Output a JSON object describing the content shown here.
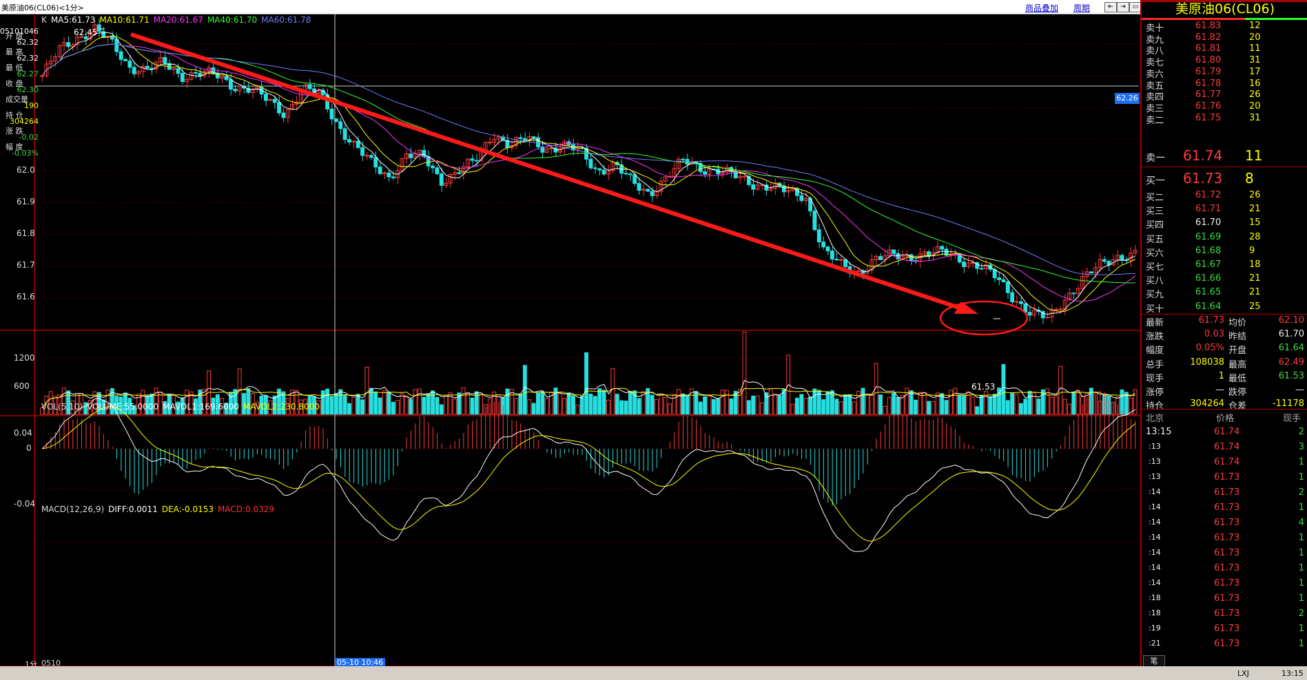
{
  "window": {
    "title": "美原油06(CL06)<1分>",
    "goods_overlay_link": "商品叠加",
    "period_link": "周期"
  },
  "left_panel": {
    "code": "05101046",
    "rows": [
      {
        "label": "开 盘",
        "value": "62.32",
        "color": "#ffffff"
      },
      {
        "label": "最 高",
        "value": "62.32",
        "color": "#ffffff"
      },
      {
        "label": "最 低",
        "value": "62.27",
        "color": "#3ddc3d"
      },
      {
        "label": "收 盘",
        "value": "62.30",
        "color": "#3ddc3d"
      },
      {
        "label": "成交量",
        "value": "190",
        "color": "#ffff00"
      },
      {
        "label": "持 仓",
        "value": "304264",
        "color": "#ffff00"
      },
      {
        "label": "涨 跌",
        "value": "-0.02",
        "color": "#3ddc3d"
      },
      {
        "label": "幅 度",
        "value": "-0.03%",
        "color": "#3ddc3d"
      }
    ]
  },
  "main_chart": {
    "legend": [
      {
        "text": "K",
        "color": "#dddddd"
      },
      {
        "text": "MA5:61.73",
        "color": "#ffffff"
      },
      {
        "text": "MA10:61.71",
        "color": "#ffff00"
      },
      {
        "text": "MA20:61.67",
        "color": "#ff33ff"
      },
      {
        "text": "MA40:61.70",
        "color": "#33ff33"
      },
      {
        "text": "MA60:61.78",
        "color": "#6f7fff"
      }
    ],
    "y_ticks": [
      "62.0",
      "61.9",
      "61.8",
      "61.7",
      "61.6"
    ],
    "high_label": "62.45",
    "low_label": "61.53",
    "price_tag": "62.26"
  },
  "volume_chart": {
    "legend": [
      {
        "text": "VOL(5,10)",
        "color": "#dddddd"
      },
      {
        "text": "VOLUME:55.0000",
        "color": "#ffffff"
      },
      {
        "text": "MAVOL1:169.6000",
        "color": "#ffffff"
      },
      {
        "text": "MAVOL2:230.8000",
        "color": "#ffff00"
      }
    ],
    "y_ticks": [
      "1200",
      "600"
    ]
  },
  "macd_chart": {
    "legend": [
      {
        "text": "MACD(12,26,9)",
        "color": "#dddddd"
      },
      {
        "text": "DIFF:0.0011",
        "color": "#ffffff"
      },
      {
        "text": "DEA:-0.0153",
        "color": "#ffff00"
      },
      {
        "text": "MACD:0.0329",
        "color": "#ff3333"
      }
    ],
    "y_ticks": [
      "0.04",
      "0",
      "-0.04"
    ]
  },
  "x_axis": {
    "period_label": "1分",
    "start_label": "0510",
    "cursor_label": "05-10 10:46"
  },
  "right_panel": {
    "title": "美原油06(CL06)",
    "asks": [
      {
        "name": "卖十",
        "price": "61.83",
        "qty": "12"
      },
      {
        "name": "卖九",
        "price": "61.82",
        "qty": "20"
      },
      {
        "name": "卖八",
        "price": "61.81",
        "qty": "11"
      },
      {
        "name": "卖七",
        "price": "61.80",
        "qty": "31"
      },
      {
        "name": "卖六",
        "price": "61.79",
        "qty": "17"
      },
      {
        "name": "卖五",
        "price": "61.78",
        "qty": "16"
      },
      {
        "name": "卖四",
        "price": "61.77",
        "qty": "26"
      },
      {
        "name": "卖三",
        "price": "61.76",
        "qty": "20"
      },
      {
        "name": "卖二",
        "price": "61.75",
        "qty": "31"
      }
    ],
    "ask1": {
      "name": "卖一",
      "price": "61.74",
      "qty": "11"
    },
    "bid1": {
      "name": "买一",
      "price": "61.73",
      "qty": "8"
    },
    "bids": [
      {
        "name": "买二",
        "price": "61.72",
        "qty": "26",
        "pc": "red"
      },
      {
        "name": "买三",
        "price": "61.71",
        "qty": "21",
        "pc": "red"
      },
      {
        "name": "买四",
        "price": "61.70",
        "qty": "15",
        "pc": "white"
      },
      {
        "name": "买五",
        "price": "61.69",
        "qty": "28",
        "pc": "green"
      },
      {
        "name": "买六",
        "price": "61.68",
        "qty": "9",
        "pc": "green"
      },
      {
        "name": "买七",
        "price": "61.67",
        "qty": "18",
        "pc": "green"
      },
      {
        "name": "买八",
        "price": "61.66",
        "qty": "21",
        "pc": "green"
      },
      {
        "name": "买九",
        "price": "61.65",
        "qty": "21",
        "pc": "green"
      },
      {
        "name": "买十",
        "price": "61.64",
        "qty": "25",
        "pc": "green"
      }
    ],
    "stats": [
      {
        "l1": "最新",
        "v1": "61.73",
        "c1": "red",
        "l2": "均价",
        "v2": "62.10",
        "c2": "red"
      },
      {
        "l1": "涨跌",
        "v1": "0.03",
        "c1": "red",
        "l2": "昨结",
        "v2": "61.70",
        "c2": "white"
      },
      {
        "l1": "幅度",
        "v1": "0.05%",
        "c1": "red",
        "l2": "开盘",
        "v2": "61.64",
        "c2": "green"
      },
      {
        "l1": "总手",
        "v1": "108038",
        "c1": "yellow",
        "l2": "最高",
        "v2": "62.49",
        "c2": "red"
      },
      {
        "l1": "现手",
        "v1": "1",
        "c1": "yellow",
        "l2": "最低",
        "v2": "61.53",
        "c2": "green"
      },
      {
        "l1": "涨停",
        "v1": "—",
        "c1": "white",
        "l2": "跌停",
        "v2": "—",
        "c2": "white"
      },
      {
        "l1": "持仓",
        "v1": "304264",
        "c1": "yellow",
        "l2": "仓差",
        "v2": "-11178",
        "c2": "yellow"
      }
    ],
    "ticks_header": {
      "time": "北京",
      "price": "价格",
      "vol": "现手"
    },
    "ticks": [
      {
        "time": "13:15",
        "price": "61.74",
        "vol": "2"
      },
      {
        "time": ":13",
        "price": "61.74",
        "vol": "3"
      },
      {
        "time": ":13",
        "price": "61.74",
        "vol": "1"
      },
      {
        "time": ":13",
        "price": "61.73",
        "vol": "1"
      },
      {
        "time": ":14",
        "price": "61.73",
        "vol": "2"
      },
      {
        "time": ":14",
        "price": "61.73",
        "vol": "1"
      },
      {
        "time": ":14",
        "price": "61.73",
        "vol": "4"
      },
      {
        "time": ":14",
        "price": "61.73",
        "vol": "1"
      },
      {
        "time": ":14",
        "price": "61.73",
        "vol": "1"
      },
      {
        "time": ":14",
        "price": "61.73",
        "vol": "1"
      },
      {
        "time": ":14",
        "price": "61.73",
        "vol": "1"
      },
      {
        "time": ":18",
        "price": "61.73",
        "vol": "1"
      },
      {
        "time": ":18",
        "price": "61.73",
        "vol": "2"
      },
      {
        "time": ":19",
        "price": "61.73",
        "vol": "1"
      },
      {
        "time": ":21",
        "price": "61.73",
        "vol": "1"
      }
    ],
    "bottom_tab": "笔"
  },
  "status": {
    "time": "13:15",
    "text": "LXJ"
  },
  "chart_data": {
    "type": "candlestick",
    "series": [
      {
        "name": "MA5",
        "color": "#ffffff"
      },
      {
        "name": "MA10",
        "color": "#ffff00"
      },
      {
        "name": "MA20",
        "color": "#ff33ff"
      },
      {
        "name": "MA40",
        "color": "#33ff33"
      },
      {
        "name": "MA60",
        "color": "#6f7fff"
      }
    ],
    "price_path": [
      62.3,
      62.38,
      62.42,
      62.45,
      62.4,
      62.33,
      62.32,
      62.34,
      62.3,
      62.31,
      62.3,
      62.27,
      62.26,
      62.22,
      62.18,
      62.26,
      62.24,
      62.15,
      62.08,
      62.02,
      61.98,
      62.05,
      62.04,
      61.97,
      62.0,
      62.03,
      62.12,
      62.08,
      62.1,
      62.07,
      62.08,
      62.06,
      62.0,
      62.02,
      61.96,
      61.93,
      61.98,
      62.03,
      62.01,
      62.0,
      61.98,
      61.96,
      61.95,
      61.93,
      61.92,
      61.75,
      61.7,
      61.68,
      61.72,
      61.73,
      61.73,
      61.74,
      61.74,
      61.72,
      61.7,
      61.66,
      61.6,
      61.55,
      61.53,
      61.6,
      61.66,
      61.7,
      61.73,
      61.74
    ],
    "ylim": [
      61.5,
      62.5
    ]
  }
}
